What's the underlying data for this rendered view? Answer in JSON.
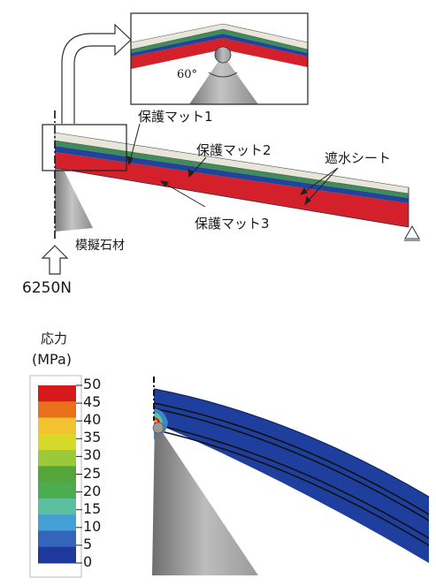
{
  "labels": {
    "mat1": "保護マット1",
    "mat2": "保護マット2",
    "mat3": "保護マット3",
    "waterproof": "遮水シート",
    "stone": "模擬石材",
    "load": "6250N",
    "angle": "60°"
  },
  "legend": {
    "title_line1": "応力",
    "title_line2": "(MPa)",
    "ticks": [
      "50",
      "45",
      "40",
      "35",
      "30",
      "25",
      "20",
      "15",
      "10",
      "5",
      "0"
    ],
    "colors": [
      "#d7191c",
      "#e8701d",
      "#f2c230",
      "#d6d928",
      "#9bc93a",
      "#55a63a",
      "#4cac50",
      "#5bbfa0",
      "#46a0d8",
      "#3565bb",
      "#1f3a9c"
    ]
  },
  "colors": {
    "layer_cream": "#e8e6d8",
    "layer_green": "#3e8c5a",
    "layer_blue": "#23439a",
    "layer_red": "#d3202b",
    "stress_blue": "#1f3f9f"
  }
}
